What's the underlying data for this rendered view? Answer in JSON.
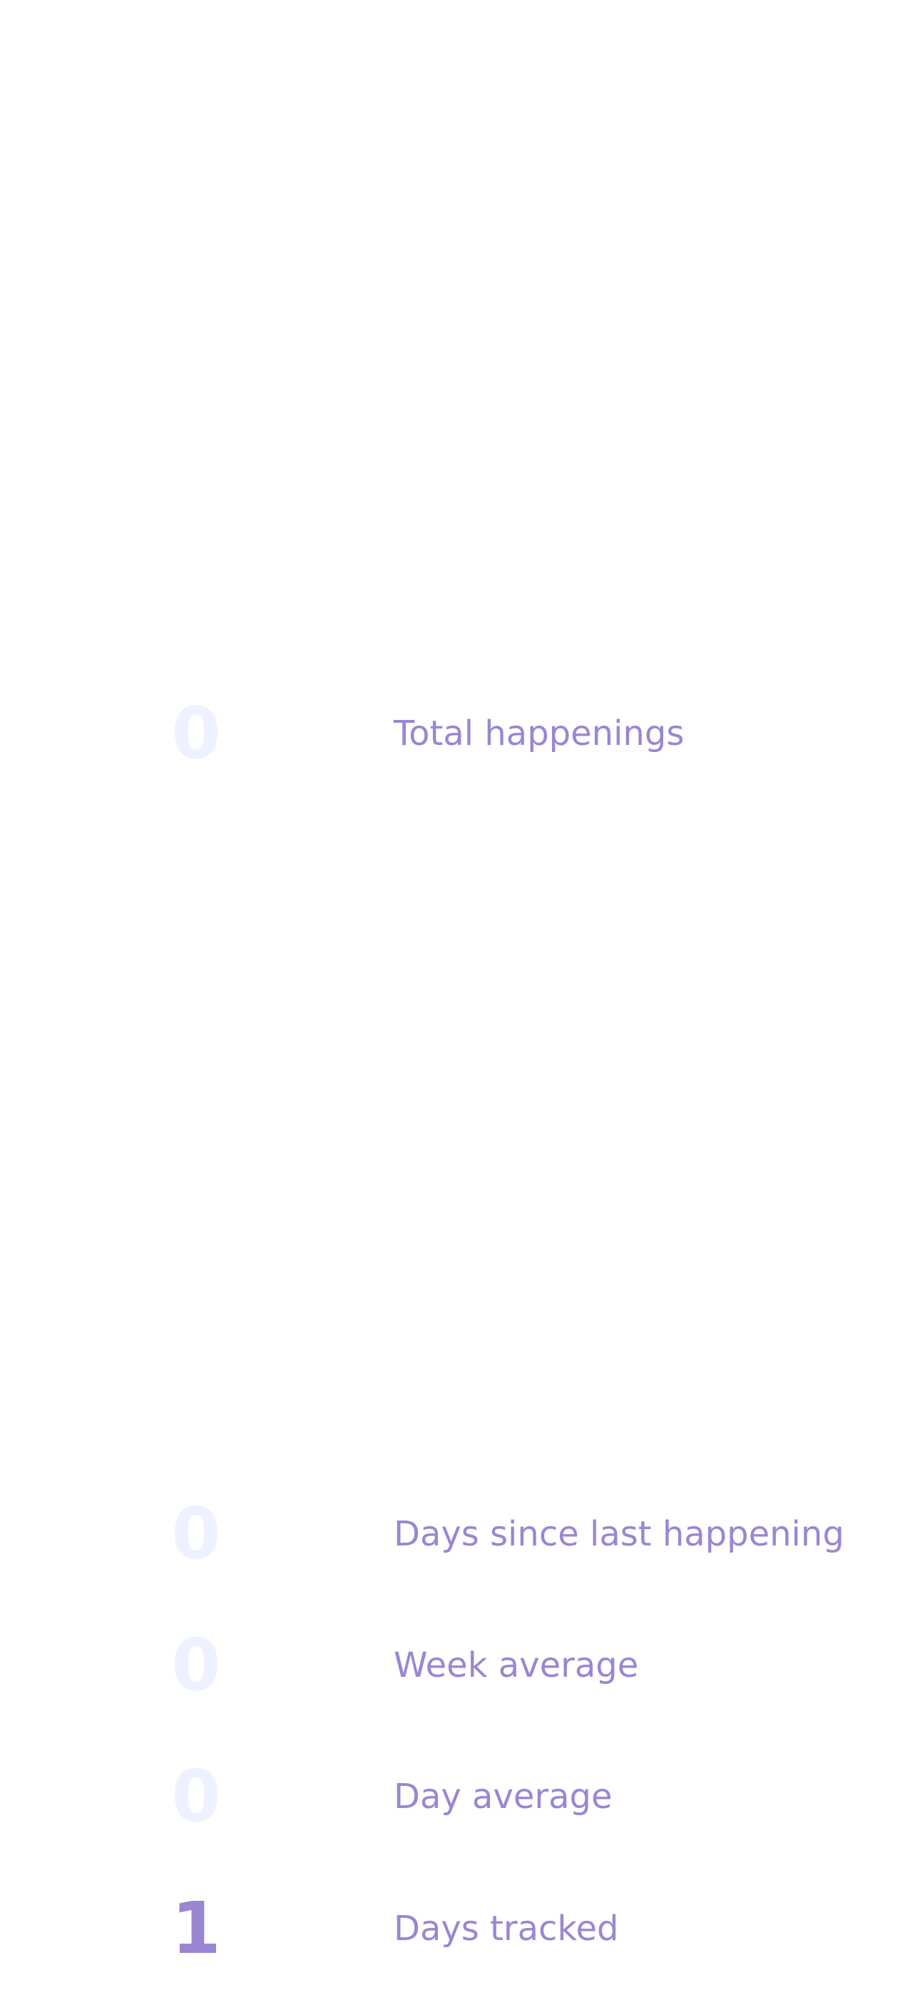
{
  "colors": {
    "background": "#ffffff",
    "label": "#9A86D2",
    "value_zero": "#EEF1FF",
    "value_active": "#9A86D2"
  },
  "stats": [
    {
      "id": "total-happenings",
      "value": "0",
      "label": "Total happenings",
      "emphasis": false
    },
    {
      "id": "days-since-last-happening",
      "value": "0",
      "label": "Days since last happening",
      "emphasis": false
    },
    {
      "id": "week-average",
      "value": "0",
      "label": "Week average",
      "emphasis": false
    },
    {
      "id": "day-average",
      "value": "0",
      "label": "Day average",
      "emphasis": false
    },
    {
      "id": "days-tracked",
      "value": "1",
      "label": "Days tracked",
      "emphasis": true
    }
  ]
}
